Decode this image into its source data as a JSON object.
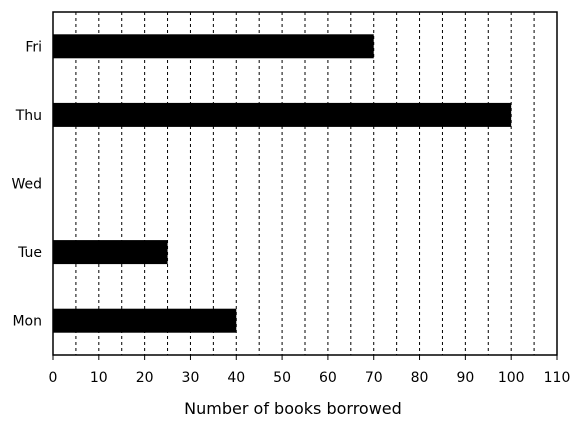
{
  "chart_data": {
    "type": "bar",
    "orientation": "horizontal",
    "title": "",
    "xlabel": "Number of books borrowed",
    "ylabel": "",
    "categories": [
      "Mon",
      "Tue",
      "Wed",
      "Thu",
      "Fri"
    ],
    "values": [
      40,
      25,
      0,
      100,
      70
    ],
    "xlim": [
      0,
      110
    ],
    "xticks": [
      "0",
      "10",
      "20",
      "30",
      "40",
      "50",
      "60",
      "70",
      "80",
      "90",
      "100",
      "110"
    ],
    "grid": "vertical dashed lines every 5",
    "legend": "none",
    "bar_color": "#000000"
  }
}
